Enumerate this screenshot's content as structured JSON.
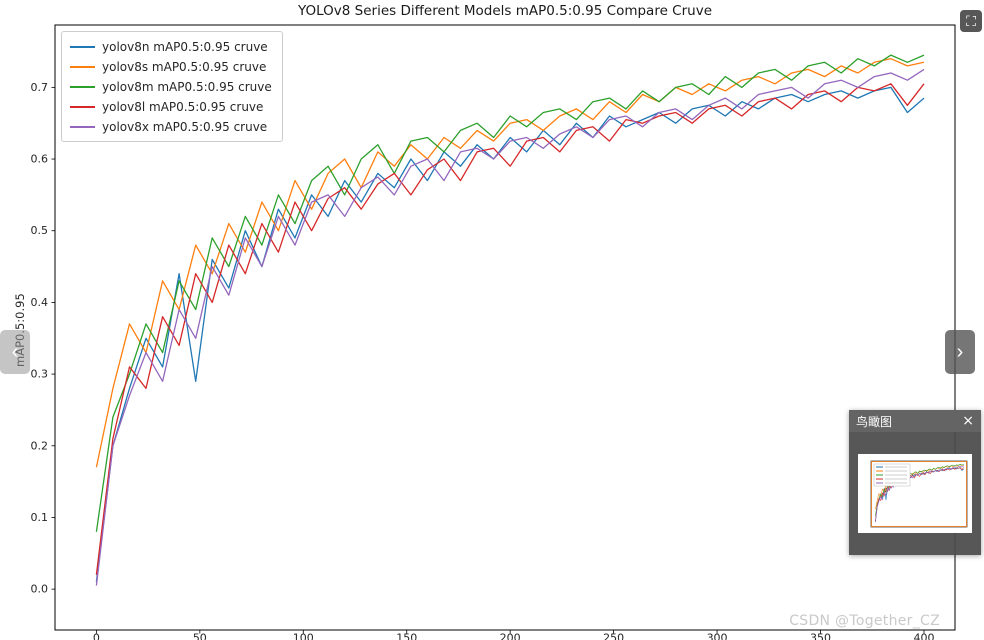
{
  "viewer": {
    "prev_label": "‹",
    "next_label": "›",
    "fullscreen_glyph": "⛶",
    "minimap": {
      "title": "鸟瞰图",
      "close_label": "×"
    },
    "watermark": "CSDN @Together_CZ"
  },
  "chart_data": {
    "type": "line",
    "title": "YOLOv8 Series Different Models mAP0.5:0.95 Compare Cruve",
    "xlabel": "",
    "ylabel": "mAP0.5:0.95",
    "xlim": [
      -20,
      415
    ],
    "ylim": [
      -0.057,
      0.787
    ],
    "x_ticks": [
      0,
      50,
      100,
      150,
      200,
      250,
      300,
      350,
      400
    ],
    "y_ticks": [
      0.0,
      0.1,
      0.2,
      0.3,
      0.4,
      0.5,
      0.6,
      0.7
    ],
    "grid": false,
    "legend_position": "upper left",
    "x": [
      0,
      8,
      16,
      24,
      32,
      40,
      48,
      56,
      64,
      72,
      80,
      88,
      96,
      104,
      112,
      120,
      128,
      136,
      144,
      152,
      160,
      168,
      176,
      184,
      192,
      200,
      208,
      216,
      224,
      232,
      240,
      248,
      256,
      264,
      272,
      280,
      288,
      296,
      304,
      312,
      320,
      328,
      336,
      344,
      352,
      360,
      368,
      376,
      384,
      392,
      400
    ],
    "series": [
      {
        "name": "yolov8n mAP0.5:0.95 cruve",
        "color": "#1f77b4",
        "values": [
          0.01,
          0.2,
          0.28,
          0.35,
          0.31,
          0.44,
          0.29,
          0.46,
          0.42,
          0.5,
          0.45,
          0.53,
          0.49,
          0.55,
          0.52,
          0.57,
          0.54,
          0.58,
          0.56,
          0.6,
          0.57,
          0.61,
          0.59,
          0.62,
          0.6,
          0.63,
          0.61,
          0.64,
          0.62,
          0.65,
          0.63,
          0.66,
          0.645,
          0.655,
          0.665,
          0.65,
          0.67,
          0.675,
          0.66,
          0.68,
          0.67,
          0.685,
          0.69,
          0.68,
          0.69,
          0.695,
          0.685,
          0.695,
          0.7,
          0.665,
          0.685
        ]
      },
      {
        "name": "yolov8s mAP0.5:0.95 cruve",
        "color": "#ff7f0e",
        "values": [
          0.17,
          0.28,
          0.37,
          0.33,
          0.43,
          0.39,
          0.48,
          0.44,
          0.51,
          0.47,
          0.54,
          0.5,
          0.57,
          0.53,
          0.58,
          0.6,
          0.56,
          0.61,
          0.59,
          0.62,
          0.6,
          0.63,
          0.615,
          0.64,
          0.625,
          0.65,
          0.655,
          0.64,
          0.66,
          0.67,
          0.655,
          0.68,
          0.665,
          0.69,
          0.68,
          0.7,
          0.69,
          0.705,
          0.695,
          0.71,
          0.715,
          0.705,
          0.72,
          0.725,
          0.715,
          0.73,
          0.72,
          0.735,
          0.74,
          0.73,
          0.735
        ]
      },
      {
        "name": "yolov8m mAP0.5:0.95 cruve",
        "color": "#2ca02c",
        "values": [
          0.08,
          0.24,
          0.3,
          0.37,
          0.33,
          0.43,
          0.39,
          0.49,
          0.45,
          0.52,
          0.48,
          0.55,
          0.51,
          0.57,
          0.59,
          0.55,
          0.6,
          0.62,
          0.58,
          0.625,
          0.63,
          0.61,
          0.64,
          0.65,
          0.63,
          0.66,
          0.645,
          0.665,
          0.67,
          0.655,
          0.68,
          0.685,
          0.67,
          0.695,
          0.68,
          0.7,
          0.705,
          0.69,
          0.715,
          0.7,
          0.72,
          0.725,
          0.71,
          0.73,
          0.735,
          0.72,
          0.74,
          0.73,
          0.745,
          0.735,
          0.745
        ]
      },
      {
        "name": "yolov8l mAP0.5:0.95 cruve",
        "color": "#d62728",
        "values": [
          0.02,
          0.21,
          0.31,
          0.28,
          0.38,
          0.34,
          0.44,
          0.4,
          0.48,
          0.44,
          0.51,
          0.47,
          0.54,
          0.5,
          0.545,
          0.56,
          0.53,
          0.565,
          0.58,
          0.55,
          0.585,
          0.6,
          0.57,
          0.61,
          0.615,
          0.59,
          0.625,
          0.63,
          0.61,
          0.64,
          0.645,
          0.625,
          0.655,
          0.65,
          0.66,
          0.665,
          0.65,
          0.67,
          0.675,
          0.66,
          0.68,
          0.685,
          0.67,
          0.69,
          0.695,
          0.68,
          0.7,
          0.695,
          0.705,
          0.675,
          0.705
        ]
      },
      {
        "name": "yolov8x mAP0.5:0.95 cruve",
        "color": "#9467bd",
        "values": [
          0.005,
          0.2,
          0.27,
          0.33,
          0.29,
          0.39,
          0.35,
          0.45,
          0.41,
          0.49,
          0.45,
          0.52,
          0.48,
          0.54,
          0.55,
          0.52,
          0.56,
          0.575,
          0.55,
          0.59,
          0.6,
          0.57,
          0.61,
          0.615,
          0.6,
          0.625,
          0.63,
          0.615,
          0.635,
          0.645,
          0.63,
          0.655,
          0.66,
          0.645,
          0.665,
          0.67,
          0.655,
          0.675,
          0.685,
          0.67,
          0.69,
          0.695,
          0.7,
          0.685,
          0.705,
          0.71,
          0.7,
          0.715,
          0.72,
          0.71,
          0.725
        ]
      }
    ]
  }
}
